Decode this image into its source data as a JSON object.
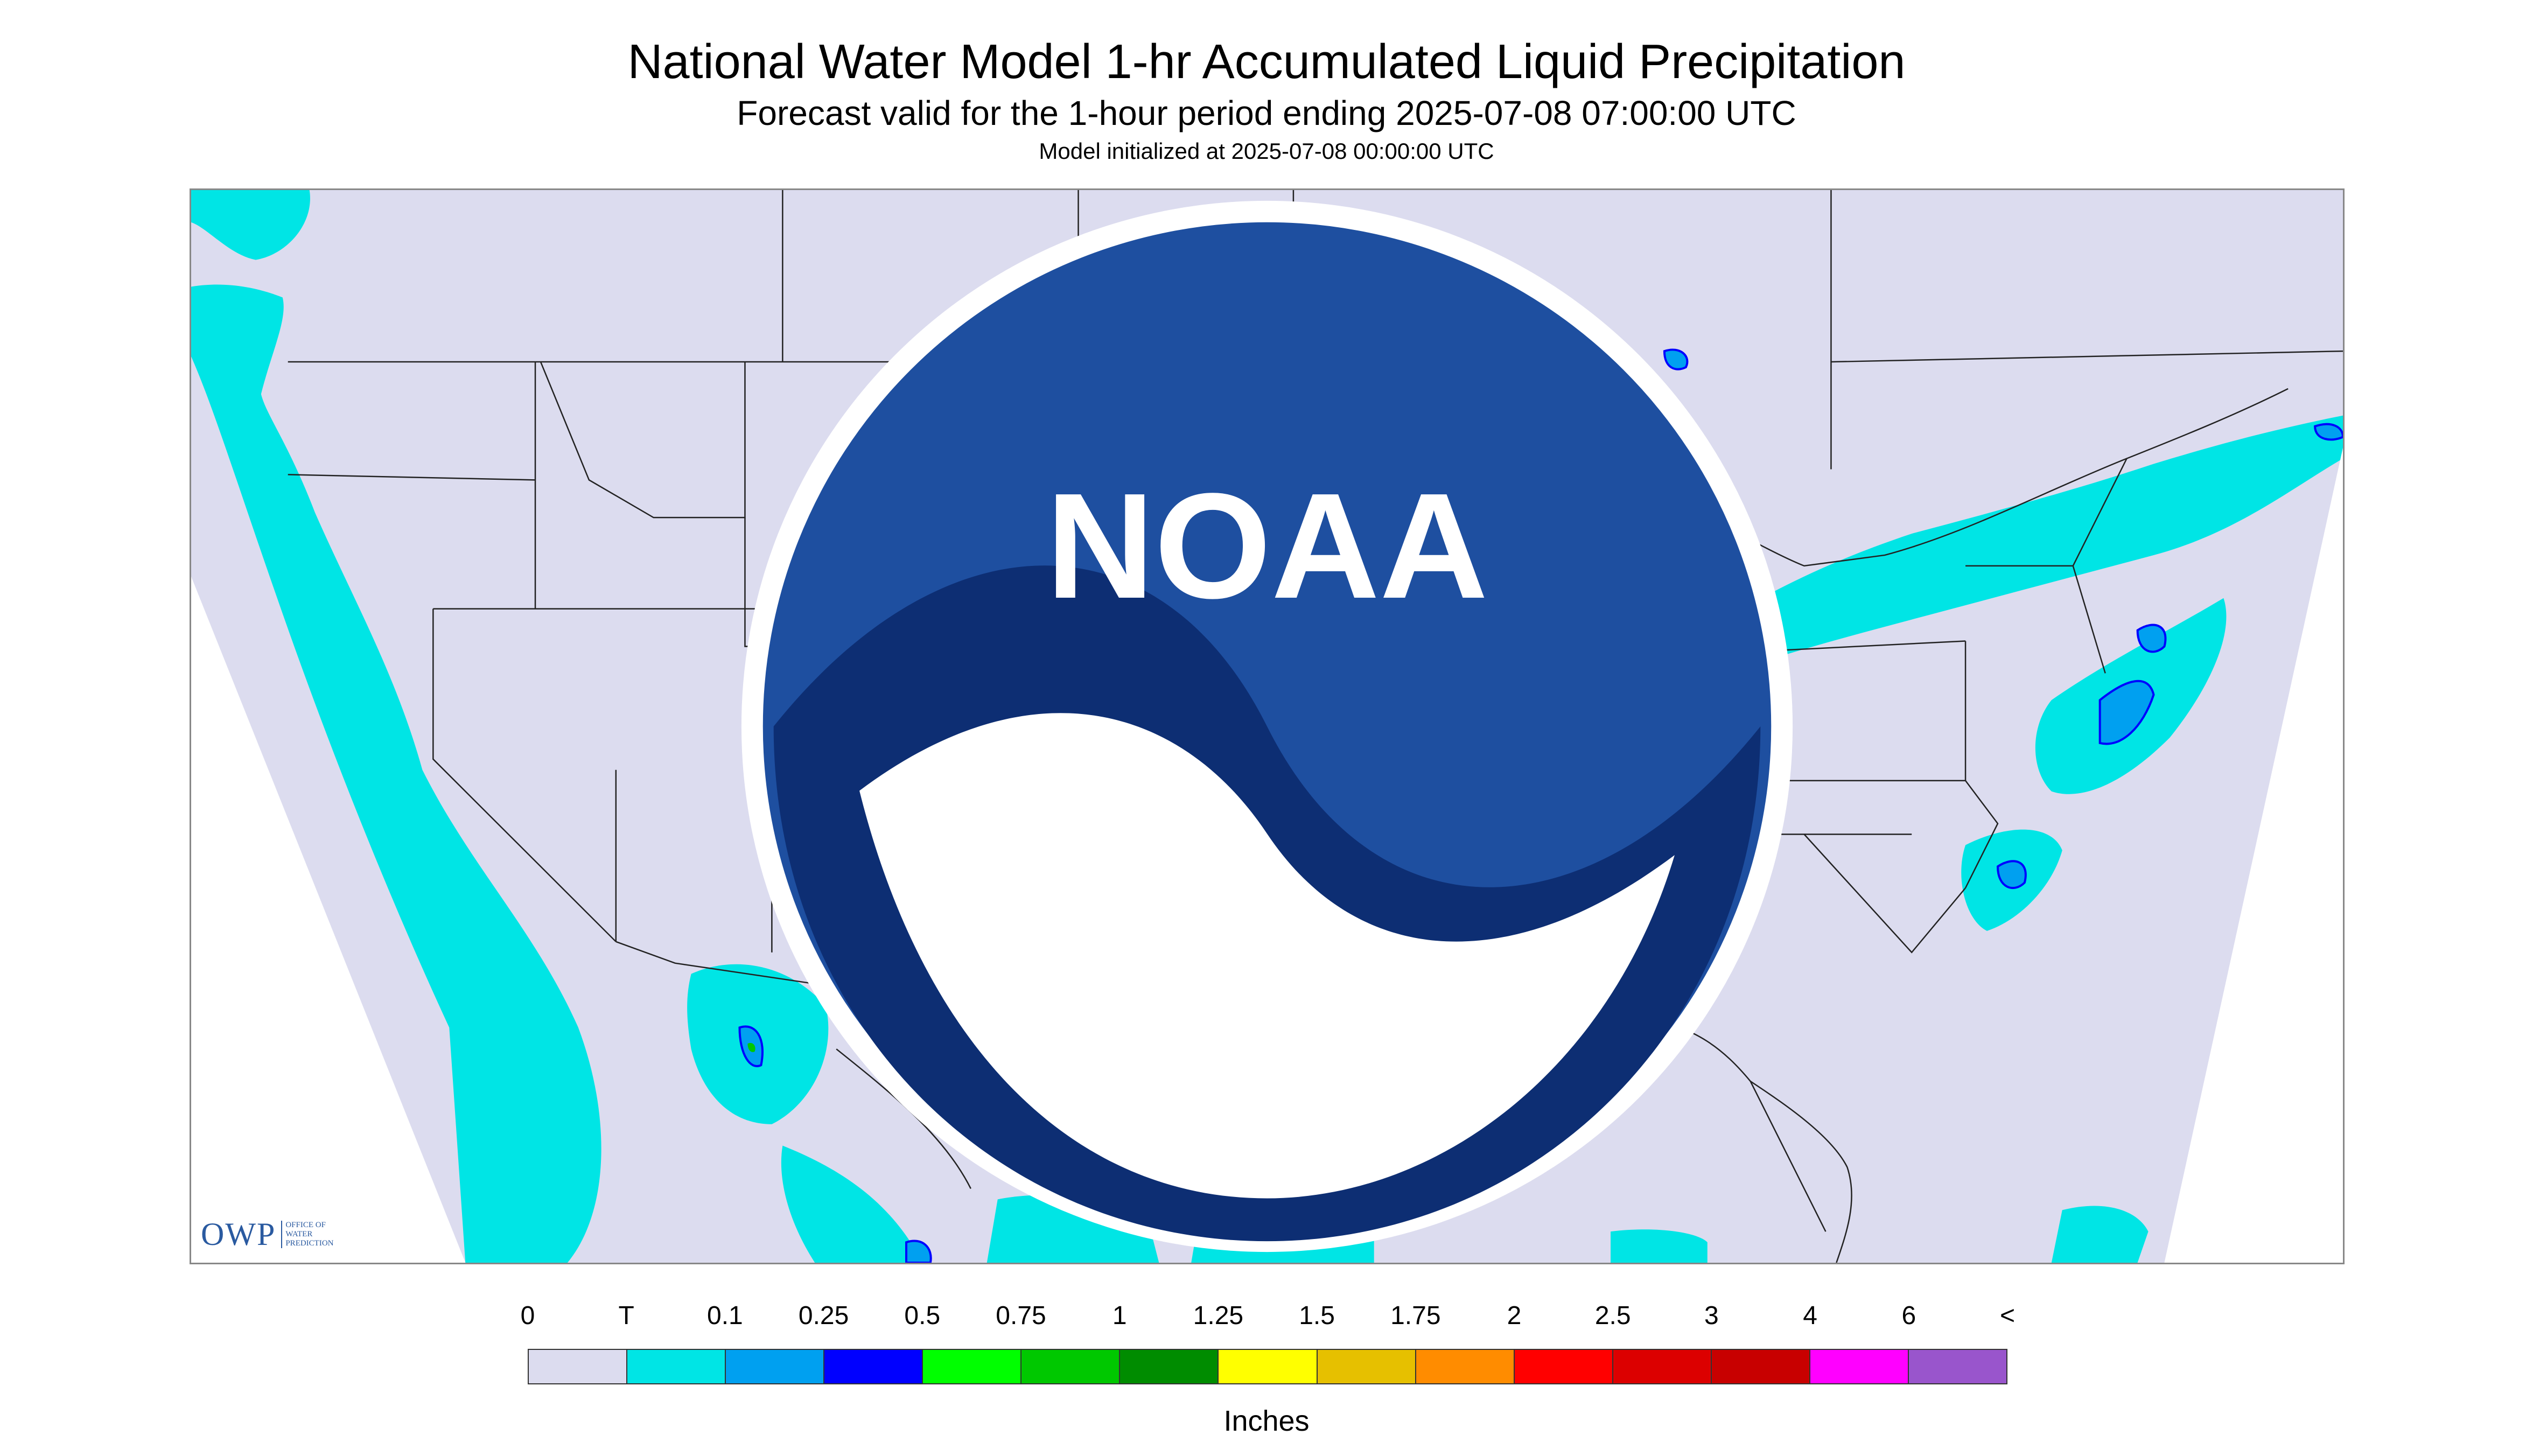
{
  "header": {
    "title": "National Water Model 1-hr Accumulated Liquid Precipitation",
    "subtitle": "Forecast valid for the 1-hour period ending 2025-07-08 07:00:00 UTC",
    "init": "Model initialized at 2025-07-08 00:00:00 UTC"
  },
  "map": {
    "background_color": "#dcdcef",
    "boundary_color": "#222222",
    "precip_colors": {
      "trace": "#00e5e5",
      "light": "#00a0f0",
      "moderate": "#0000ff",
      "heavy": "#00c800"
    }
  },
  "logos": {
    "owp_text": "OWP",
    "owp_sub": "OFFICE OF\nWATER\nPREDICTION",
    "noaa_text": "NOAA"
  },
  "legend": {
    "labels": [
      "0",
      "T",
      "0.1",
      "0.25",
      "0.5",
      "0.75",
      "1",
      "1.25",
      "1.5",
      "1.75",
      "2",
      "2.5",
      "3",
      "4",
      "6",
      "<"
    ],
    "colors": [
      "#dcdcef",
      "#00e5e5",
      "#00a0f0",
      "#0000ff",
      "#00ff00",
      "#00c800",
      "#008c00",
      "#ffff00",
      "#e6c000",
      "#ff8c00",
      "#ff0000",
      "#dc0000",
      "#c80000",
      "#ff00ff",
      "#9955cc"
    ],
    "units": "Inches"
  }
}
